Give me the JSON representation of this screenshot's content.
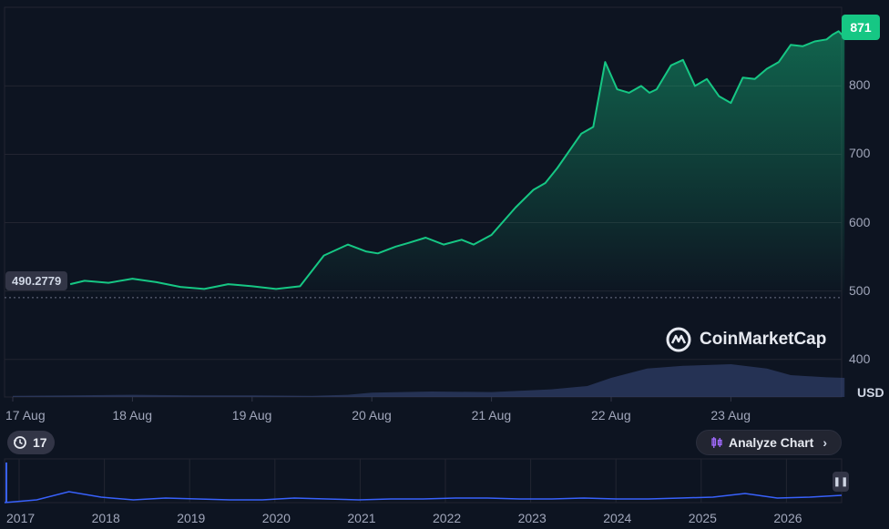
{
  "current_price": "871",
  "start_price": "490.2779",
  "currency": "USD",
  "watermark": "CoinMarketCap",
  "history_button": "17",
  "analyze_button": "Analyze Chart",
  "colors": {
    "up": "#16c784",
    "volume": "#3a4a80",
    "nav_line": "#3861fb",
    "background": "#0d1421"
  },
  "chart_data": {
    "type": "area",
    "xlabel": "",
    "ylabel": "",
    "y_ticks": [
      "400",
      "500",
      "600",
      "700",
      "800"
    ],
    "x_ticks": [
      "17 Aug",
      "18 Aug",
      "19 Aug",
      "20 Aug",
      "21 Aug",
      "22 Aug",
      "23 Aug"
    ],
    "ylim": [
      345,
      915
    ],
    "xlim": [
      0,
      6.95
    ],
    "grid": true,
    "baseline": 490.2779,
    "series": [
      {
        "x": [
          0.48,
          0.6,
          0.8,
          1.0,
          1.2,
          1.4,
          1.6,
          1.8,
          2.0,
          2.2,
          2.4,
          2.6,
          2.8,
          2.95,
          3.05,
          3.2,
          3.3,
          3.45,
          3.6,
          3.75,
          3.85,
          4.0,
          4.2,
          4.35,
          4.45,
          4.55,
          4.65,
          4.75,
          4.85,
          4.95,
          5.05,
          5.15,
          5.25,
          5.32,
          5.38,
          5.5,
          5.6,
          5.7,
          5.8,
          5.9,
          6.0,
          6.1,
          6.2,
          6.3,
          6.4,
          6.5,
          6.6,
          6.7,
          6.8,
          6.85,
          6.9,
          6.95
        ],
        "y": [
          510,
          515,
          512,
          518,
          513,
          506,
          503,
          510,
          507,
          503,
          507,
          552,
          568,
          558,
          555,
          565,
          570,
          578,
          568,
          575,
          568,
          582,
          622,
          648,
          658,
          680,
          705,
          730,
          740,
          835,
          795,
          790,
          800,
          790,
          795,
          830,
          838,
          800,
          810,
          785,
          775,
          812,
          810,
          825,
          835,
          860,
          858,
          865,
          868,
          875,
          880,
          871
        ]
      }
    ],
    "volume": {
      "x": [
        0,
        0.5,
        1.0,
        1.5,
        2.0,
        2.5,
        2.8,
        3.0,
        3.5,
        4.0,
        4.5,
        4.8,
        5.0,
        5.3,
        5.6,
        6.0,
        6.3,
        6.5,
        6.8,
        6.95
      ],
      "values": [
        2,
        3,
        4,
        3,
        3,
        2,
        4,
        8,
        10,
        9,
        14,
        20,
        35,
        52,
        57,
        60,
        52,
        40,
        36,
        35
      ],
      "max": 100
    },
    "navigator": {
      "x_ticks": [
        "2017",
        "2018",
        "2019",
        "2020",
        "2021",
        "2022",
        "2023",
        "2024",
        "2025",
        "2026"
      ],
      "values": [
        0,
        3,
        12,
        6,
        3,
        5,
        4,
        3,
        3,
        5,
        4,
        3,
        4,
        4,
        5,
        5,
        4,
        4,
        5,
        4,
        4,
        5,
        6,
        10,
        5,
        6,
        8
      ]
    }
  }
}
